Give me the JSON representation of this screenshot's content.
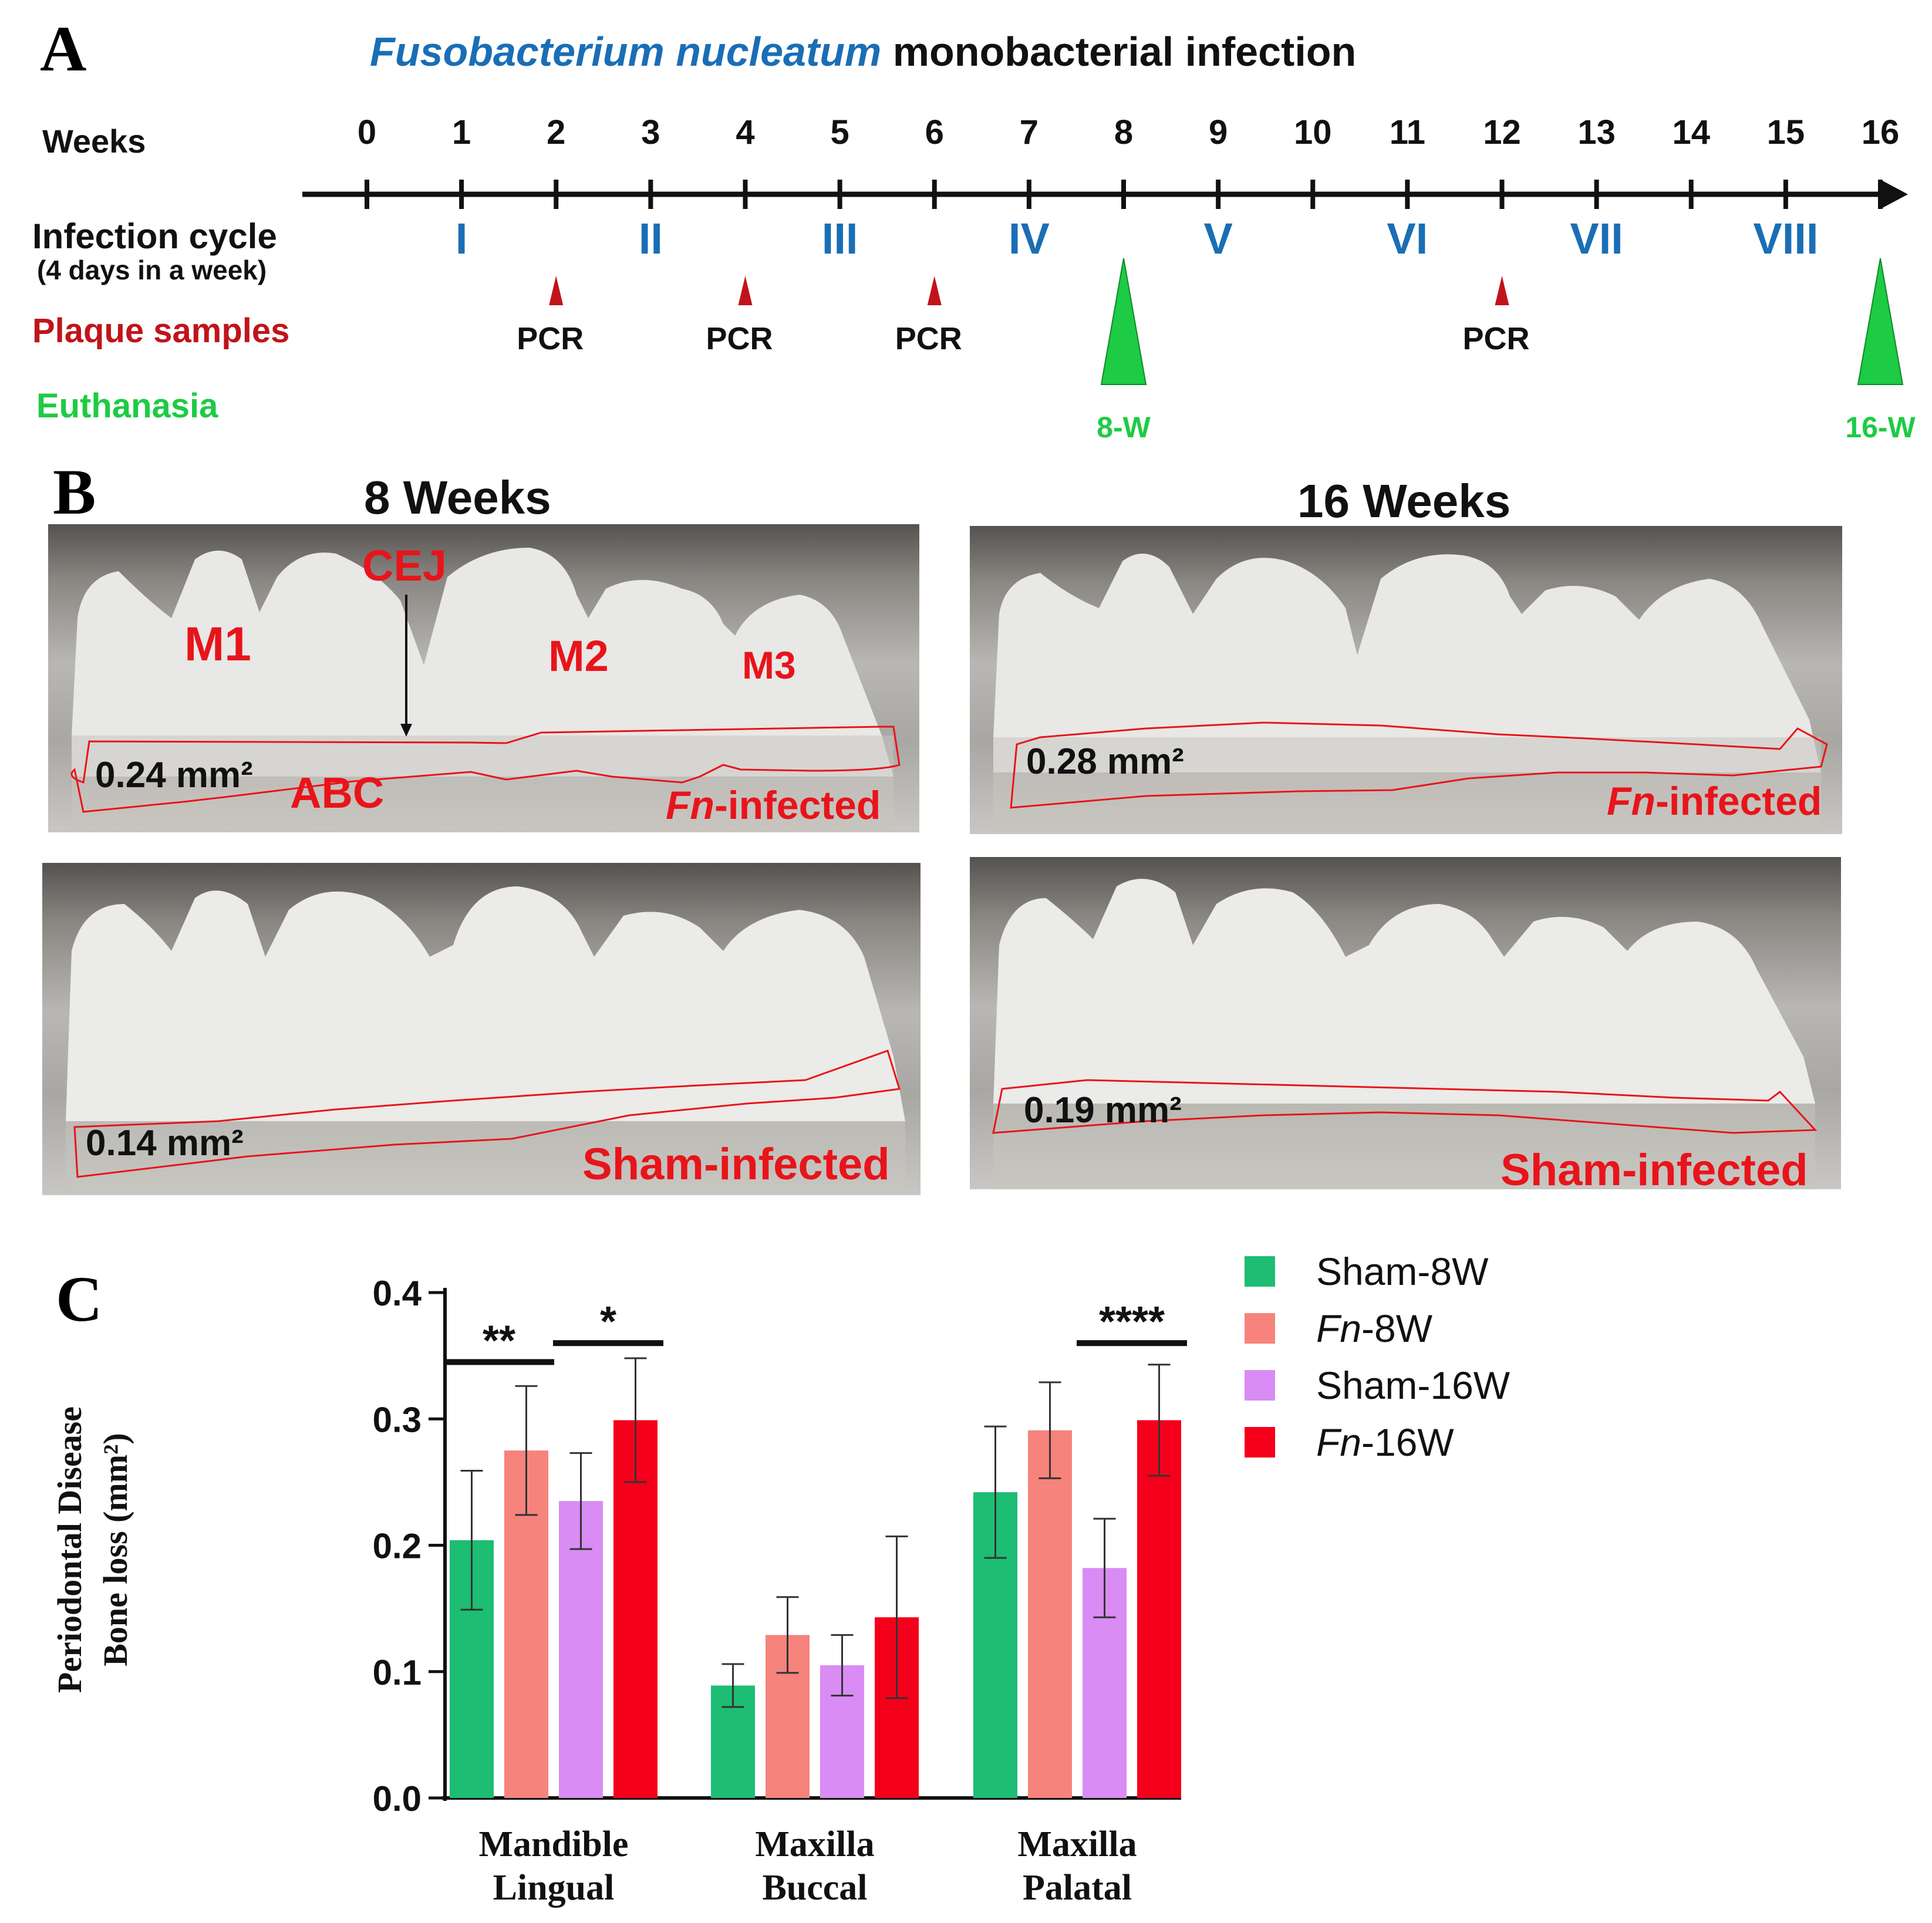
{
  "panel_a": {
    "letter": "A",
    "title_italic": "Fusobacterium nucleatum",
    "title_rest": " monobacterial infection",
    "weeks_label": "Weeks",
    "weeks": [
      "0",
      "1",
      "2",
      "3",
      "4",
      "5",
      "6",
      "7",
      "8",
      "9",
      "10",
      "11",
      "12",
      "13",
      "14",
      "15",
      "16"
    ],
    "infection_label": "Infection cycle",
    "infection_sub": "(4 days in a week)",
    "cycles": [
      {
        "label": "I",
        "week": 1
      },
      {
        "label": "II",
        "week": 3
      },
      {
        "label": "III",
        "week": 5
      },
      {
        "label": "IV",
        "week": 7
      },
      {
        "label": "V",
        "week": 9
      },
      {
        "label": "VI",
        "week": 11
      },
      {
        "label": "VII",
        "week": 13
      },
      {
        "label": "VIII",
        "week": 15
      }
    ],
    "plaque_label": "Plaque samples",
    "pcr_label": "PCR",
    "pcr_weeks": [
      2,
      4,
      6,
      12
    ],
    "euthanasia_label": "Euthanasia",
    "euthanasia": [
      {
        "label": "8-W",
        "week": 8
      },
      {
        "label": "16-W",
        "week": 16
      }
    ],
    "colors": {
      "cycle": "#1a6eb5",
      "plaque": "#c0141a",
      "euth": "#1ecb44",
      "title_blue": "#1a6eb5"
    }
  },
  "panel_b": {
    "letter": "B",
    "col_8": "8 Weeks",
    "col_16": "16 Weeks",
    "labels": {
      "m1": "M1",
      "m2": "M2",
      "m3": "M3",
      "cej": "CEJ",
      "abc": "ABC"
    },
    "photos": [
      {
        "area": "0.24 mm²",
        "group_italic": "Fn",
        "group_rest": "-infected"
      },
      {
        "area": "0.28 mm²",
        "group_italic": "Fn",
        "group_rest": "-infected"
      },
      {
        "area": "0.14 mm²",
        "group_italic": "",
        "group_rest": "Sham-infected"
      },
      {
        "area": "0.19 mm²",
        "group_italic": "",
        "group_rest": "Sham-infected"
      }
    ]
  },
  "panel_c": {
    "letter": "C",
    "ylabel_line1": "Periodontal Disease",
    "ylabel_line2": "Bone loss (mm²)",
    "legend": [
      {
        "italic": "",
        "rest": "Sham-8W",
        "color": "#1dbd73"
      },
      {
        "italic": "Fn",
        "rest": "-8W",
        "color": "#f6837c"
      },
      {
        "italic": "",
        "rest": "Sham-16W",
        "color": "#d98cf3"
      },
      {
        "italic": "Fn",
        "rest": "-16W",
        "color": "#f4001b"
      }
    ],
    "significance": [
      {
        "group": 0,
        "from": 0,
        "to": 1,
        "label": "**",
        "y": 0.345
      },
      {
        "group": 0,
        "from": 2,
        "to": 3,
        "label": "*",
        "y": 0.36
      },
      {
        "group": 2,
        "from": 2,
        "to": 3,
        "label": "****",
        "y": 0.36
      }
    ]
  },
  "chart_data": {
    "type": "bar",
    "categories": [
      [
        "Mandible",
        "Lingual"
      ],
      [
        "Maxilla",
        "Buccal"
      ],
      [
        "Maxilla",
        "Palatal"
      ]
    ],
    "series": [
      {
        "name": "Sham-8W",
        "values": [
          0.204,
          0.089,
          0.242
        ],
        "errors": [
          0.055,
          0.017,
          0.052
        ]
      },
      {
        "name": "Fn-8W",
        "values": [
          0.275,
          0.129,
          0.291
        ],
        "errors": [
          0.051,
          0.03,
          0.038
        ]
      },
      {
        "name": "Sham-16W",
        "values": [
          0.235,
          0.105,
          0.182
        ],
        "errors": [
          0.038,
          0.024,
          0.039
        ]
      },
      {
        "name": "Fn-16W",
        "values": [
          0.299,
          0.143,
          0.299
        ],
        "errors": [
          0.049,
          0.064,
          0.044
        ]
      }
    ],
    "title": "",
    "xlabel": "",
    "ylabel": "Periodontal Disease Bone loss (mm²)",
    "ylim": [
      0,
      0.4
    ],
    "yticks": [
      "0.0",
      "0.1",
      "0.2",
      "0.3",
      "0.4"
    ],
    "legend_position": "top-right",
    "grid": false
  }
}
